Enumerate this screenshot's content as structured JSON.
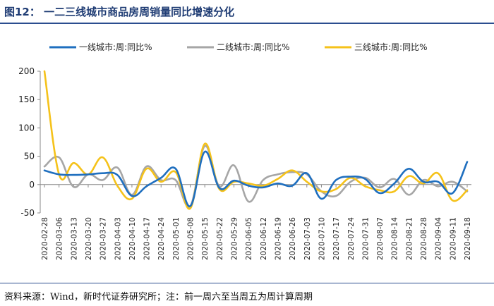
{
  "title": "图12：  一二三线城市商品房周销量同比增速分化",
  "source": "资料来源：Wind，新时代证券研究所；注：前一周六至当周五为周计算周期",
  "chart_data": {
    "type": "line",
    "title": "",
    "xlabel": "",
    "ylabel": "",
    "ylim": [
      -50,
      200
    ],
    "yticks": [
      -50,
      0,
      50,
      100,
      150,
      200
    ],
    "grid": false,
    "legend": "top",
    "x": [
      "2020-02-28",
      "2020-03-06",
      "2020-03-13",
      "2020-03-20",
      "2020-03-27",
      "2020-04-03",
      "2020-04-10",
      "2020-04-17",
      "2020-04-24",
      "2020-05-01",
      "2020-05-08",
      "2020-05-15",
      "2020-05-22",
      "2020-05-29",
      "2020-06-05",
      "2020-06-12",
      "2020-06-19",
      "2020-06-26",
      "2020-07-03",
      "2020-07-10",
      "2020-07-17",
      "2020-07-24",
      "2020-07-31",
      "2020-08-07",
      "2020-08-14",
      "2020-08-21",
      "2020-08-28",
      "2020-09-04",
      "2020-09-11",
      "2020-09-18"
    ],
    "xticks_shown": [
      "2020-02-28",
      "2020-03-06",
      "2020-03-13",
      "2020-03-20",
      "2020-03-27",
      "2020-04-03",
      "2020-04-10",
      "2020-04-17",
      "2020-04-24",
      "2020-05-01",
      "2020-05-08",
      "2020-05-15",
      "2020-05-22",
      "2020-05-29",
      "2020-06-05",
      "2020-06-12",
      "2020-06-19",
      "2020-06-26",
      "2020-07-03",
      "2020-07-10",
      "2020-07-17",
      "2020-07-24",
      "2020-07-31",
      "2020-08-07",
      "2020-08-14",
      "2020-08-21",
      "2020-08-28",
      "2020-09-04",
      "2020-09-11",
      "2020-09-18"
    ],
    "series": [
      {
        "name": "一线城市:周:同比%",
        "color": "#1f6fbf",
        "values": [
          25,
          18,
          17,
          18,
          20,
          17,
          -20,
          -3,
          12,
          28,
          -38,
          58,
          -6,
          7,
          -2,
          -5,
          2,
          -2,
          20,
          -25,
          8,
          14,
          10,
          -15,
          2,
          28,
          5,
          5,
          -15,
          40
        ]
      },
      {
        "name": "二线城市:周:同比%",
        "color": "#a6a6a6",
        "values": [
          32,
          48,
          -4,
          18,
          8,
          30,
          -18,
          32,
          8,
          8,
          -38,
          68,
          -3,
          34,
          -30,
          8,
          18,
          22,
          18,
          -12,
          -20,
          5,
          12,
          -5,
          10,
          -18,
          8,
          -3,
          5,
          -12
        ]
      },
      {
        "name": "三线城市:周:同比%",
        "color": "#f5c21a",
        "values": [
          200,
          18,
          38,
          18,
          48,
          -2,
          -25,
          28,
          5,
          22,
          -42,
          72,
          -8,
          5,
          2,
          -2,
          10,
          25,
          5,
          -12,
          -8,
          12,
          -3,
          -10,
          -12,
          15,
          2,
          20,
          -28,
          -10
        ]
      }
    ]
  }
}
